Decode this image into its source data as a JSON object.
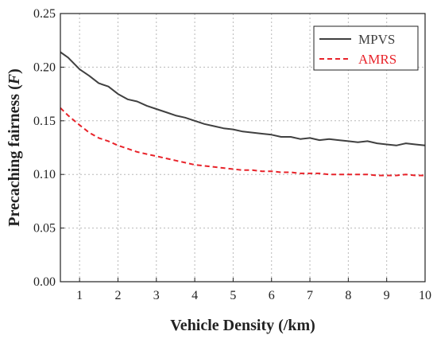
{
  "chart_data": {
    "type": "line",
    "title": "",
    "xlabel": "Vehicle Density (/km)",
    "ylabel": "Precaching fairness (F)",
    "ylabel_parts": {
      "pre": "Precaching fairness (",
      "var": "F",
      "post": ")"
    },
    "xlim": [
      0.5,
      10
    ],
    "ylim": [
      0,
      0.25
    ],
    "xticks": [
      1,
      2,
      3,
      4,
      5,
      6,
      7,
      8,
      9,
      10
    ],
    "yticks": [
      0.0,
      0.05,
      0.1,
      0.15,
      0.2,
      0.25
    ],
    "ytick_labels": [
      "0.00",
      "0.05",
      "0.10",
      "0.15",
      "0.20",
      "0.25"
    ],
    "grid": true,
    "legend_position": "top-right",
    "x": [
      0.5,
      0.7,
      1.0,
      1.25,
      1.5,
      1.75,
      2.0,
      2.25,
      2.5,
      2.75,
      3.0,
      3.25,
      3.5,
      3.75,
      4.0,
      4.25,
      4.5,
      4.75,
      5.0,
      5.25,
      5.5,
      5.75,
      6.0,
      6.25,
      6.5,
      6.75,
      7.0,
      7.25,
      7.5,
      7.75,
      8.0,
      8.25,
      8.5,
      8.75,
      9.0,
      9.25,
      9.5,
      9.75,
      10.0
    ],
    "series": [
      {
        "name": "MPVS",
        "color": "#404040",
        "dash": "solid",
        "values": [
          0.214,
          0.209,
          0.198,
          0.192,
          0.185,
          0.182,
          0.175,
          0.17,
          0.168,
          0.164,
          0.161,
          0.158,
          0.155,
          0.153,
          0.15,
          0.147,
          0.145,
          0.143,
          0.142,
          0.14,
          0.139,
          0.138,
          0.137,
          0.135,
          0.135,
          0.133,
          0.134,
          0.132,
          0.133,
          0.132,
          0.131,
          0.13,
          0.131,
          0.129,
          0.128,
          0.127,
          0.129,
          0.128,
          0.127
        ]
      },
      {
        "name": "AMRS",
        "color": "#e8232a",
        "dash": "dashed",
        "values": [
          0.162,
          0.155,
          0.146,
          0.139,
          0.134,
          0.131,
          0.127,
          0.124,
          0.121,
          0.119,
          0.117,
          0.115,
          0.113,
          0.111,
          0.109,
          0.108,
          0.107,
          0.106,
          0.105,
          0.104,
          0.104,
          0.103,
          0.103,
          0.102,
          0.102,
          0.101,
          0.101,
          0.101,
          0.1,
          0.1,
          0.1,
          0.1,
          0.1,
          0.099,
          0.099,
          0.099,
          0.1,
          0.099,
          0.099
        ]
      }
    ]
  }
}
